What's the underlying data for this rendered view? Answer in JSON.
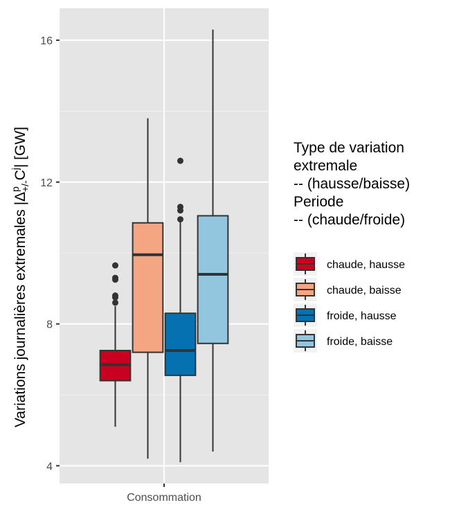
{
  "chart_data": {
    "type": "boxplot",
    "x_categories": [
      "Consommation"
    ],
    "ylabel": {
      "base": "Variations journalières extremales |Δ",
      "sup": "p",
      "sub": "+/-",
      "mid": "C",
      "sup2": "j",
      "tail": "| [GW]"
    },
    "ylim": [
      3.5,
      16.9
    ],
    "yticks": [
      4,
      8,
      12,
      16
    ],
    "grid": true,
    "legend": {
      "placement": "right",
      "title_lines": [
        "Type de variation",
        " extremale",
        " -- (hausse/baisse)",
        "Periode",
        " -- (chaude/froide)"
      ]
    },
    "series": [
      {
        "name": "chaude, hausse",
        "color": "#CA0020",
        "whisker_low": 5.1,
        "q1": 6.4,
        "median": 6.85,
        "q3": 7.25,
        "whisker_high": 8.5,
        "outliers": [
          8.6,
          8.75,
          8.8,
          9.25,
          9.3,
          9.65
        ]
      },
      {
        "name": "chaude, baisse",
        "color": "#F4A582",
        "whisker_low": 4.2,
        "q1": 7.2,
        "median": 9.95,
        "q3": 10.85,
        "whisker_high": 13.8,
        "outliers": []
      },
      {
        "name": "froide, hausse",
        "color": "#0571B0",
        "whisker_low": 4.1,
        "q1": 6.55,
        "median": 7.25,
        "q3": 8.3,
        "whisker_high": 10.9,
        "outliers": [
          10.95,
          11.2,
          11.3,
          12.6
        ]
      },
      {
        "name": "froide, baisse",
        "color": "#92C5DE",
        "whisker_low": 4.4,
        "q1": 7.45,
        "median": 9.4,
        "q3": 11.05,
        "whisker_high": 16.3,
        "outliers": []
      }
    ]
  }
}
